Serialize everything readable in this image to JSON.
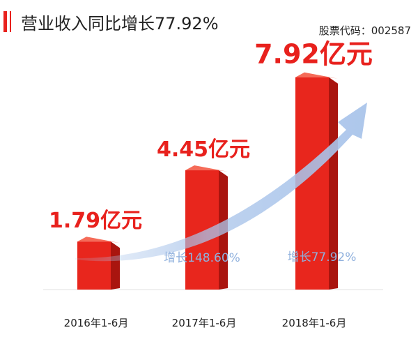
{
  "header": {
    "title": "营业收入同比增长77.92%",
    "stock_code": "股票代码：002587"
  },
  "colors": {
    "accent": "#e8211d",
    "bar_front": "#e8261d",
    "bar_side": "#a9150f",
    "bar_top": "#f56b58",
    "arrow": "#a9c4ea",
    "growth_text": "#8fb0dd"
  },
  "chart_data": {
    "type": "bar",
    "categories": [
      "2016年1-6月",
      "2017年1-6月",
      "2018年1-6月"
    ],
    "values": [
      1.79,
      4.45,
      7.92
    ],
    "value_labels": [
      "1.79亿元",
      "4.45亿元",
      "7.92亿元"
    ],
    "growth_labels": [
      "",
      "增长148.60%",
      "增长77.92%"
    ],
    "unit": "亿元",
    "ylim": [
      0,
      8.85
    ],
    "grid": false,
    "legend": "none",
    "trend_arrow": true
  }
}
